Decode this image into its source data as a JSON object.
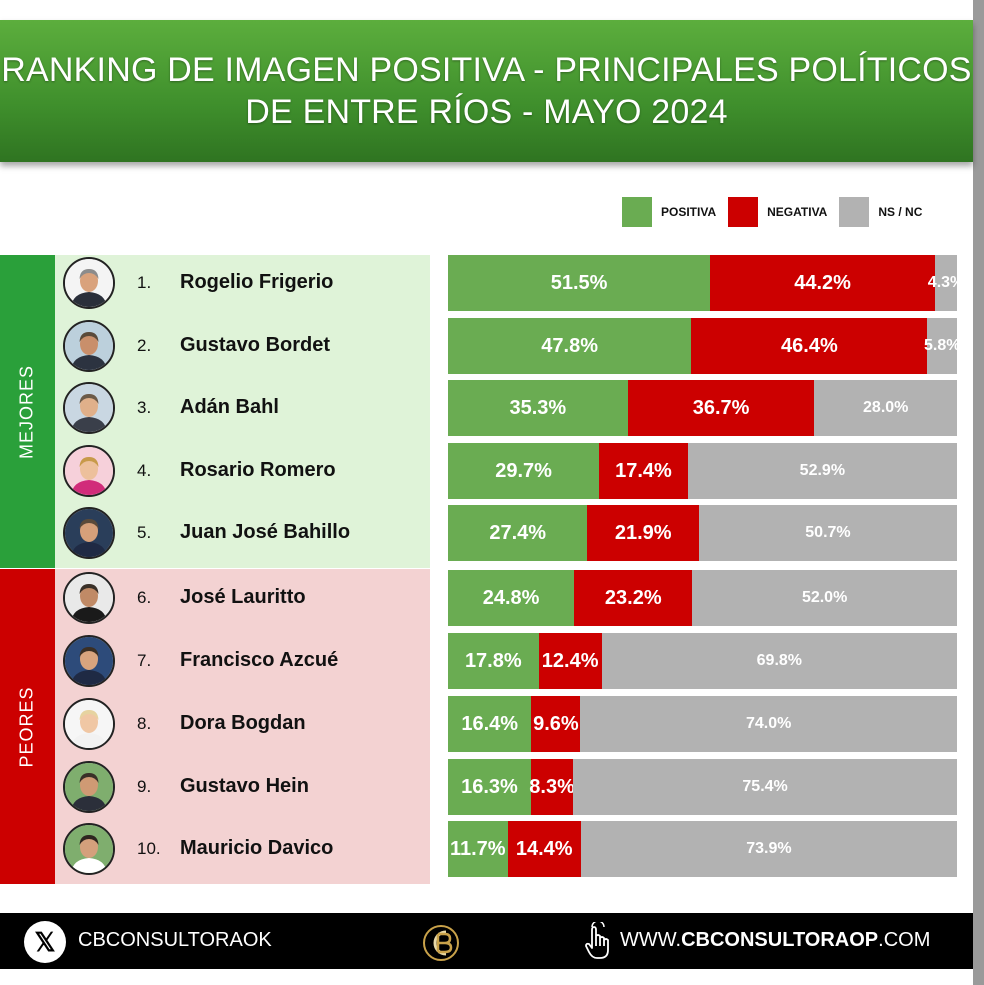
{
  "title_lines": [
    "RANKING DE IMAGEN POSITIVA - PRINCIPALES POLÍTICOS",
    "DE ENTRE RÍOS - MAYO 2024"
  ],
  "legend": [
    {
      "label": "POSITIVA",
      "color": "#6aac52"
    },
    {
      "label": "NEGATIVA",
      "color": "#cc0000"
    },
    {
      "label": "NS / NC",
      "color": "#b2b2b2"
    }
  ],
  "groups": {
    "mejores": {
      "label": "MEJORES",
      "color": "#2aa03a",
      "bg": "#dff3d8"
    },
    "peores": {
      "label": "PEORES",
      "color": "#cc0000",
      "bg": "#f3d2d2"
    }
  },
  "chart_data": {
    "type": "bar",
    "orientation": "horizontal",
    "stacked": true,
    "title": "RANKING DE IMAGEN POSITIVA - PRINCIPALES POLÍTICOS DE ENTRE RÍOS - MAYO 2024",
    "categories": [
      "Rogelio Frigerio",
      "Gustavo Bordet",
      "Adán Bahl",
      "Rosario Romero",
      "Juan José Bahillo",
      "José Lauritto",
      "Francisco Azcué",
      "Dora Bogdan",
      "Gustavo Hein",
      "Mauricio Davico"
    ],
    "ranks": [
      "1.",
      "2.",
      "3.",
      "4.",
      "5.",
      "6.",
      "7.",
      "8.",
      "9.",
      "10."
    ],
    "series": [
      {
        "name": "POSITIVA",
        "color": "#6aac52",
        "values": [
          51.5,
          47.8,
          35.3,
          29.7,
          27.4,
          24.8,
          17.8,
          16.4,
          16.3,
          11.7
        ],
        "labels": [
          "51.5%",
          "47.8%",
          "35.3%",
          "29.7%",
          "27.4%",
          "24.8%",
          "17.8%",
          "16.4%",
          "16.3%",
          "11.7%"
        ]
      },
      {
        "name": "NEGATIVA",
        "color": "#cc0000",
        "values": [
          44.2,
          46.4,
          36.7,
          17.4,
          21.9,
          23.2,
          12.4,
          9.6,
          8.3,
          14.4
        ],
        "labels": [
          "44.2%",
          "46.4%",
          "36.7%",
          "17.4%",
          "21.9%",
          "23.2%",
          "12.4%",
          "9.6%",
          "8.3%",
          "14.4%"
        ]
      },
      {
        "name": "NS / NC",
        "color": "#b2b2b2",
        "values": [
          4.3,
          5.8,
          28.0,
          52.9,
          50.7,
          52.0,
          69.8,
          74.0,
          75.4,
          73.9
        ],
        "labels": [
          "4.3%",
          "5.8%",
          "28.0%",
          "52.9%",
          "50.7%",
          "52.0%",
          "69.8%",
          "74.0%",
          "75.4%",
          "73.9%"
        ]
      }
    ],
    "xlim": [
      0,
      100
    ],
    "legend_position": "top-right",
    "grid": false
  },
  "footer": {
    "x_handle": "CBCONSULTORAOK",
    "website_prefix": "WWW.",
    "website_main": "CBCONSULTORAOP",
    "website_suffix": ".COM"
  }
}
